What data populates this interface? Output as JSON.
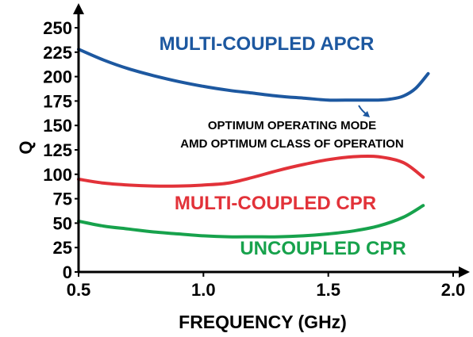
{
  "chart_data": {
    "type": "line",
    "xlabel": "FREQUENCY (GHz)",
    "ylabel": "Q",
    "xlim": [
      0.5,
      2.0
    ],
    "ylim": [
      0,
      250
    ],
    "xticks": [
      0.5,
      1.0,
      1.5,
      2.0
    ],
    "xtick_labels": [
      "0.5",
      "1.0",
      "1.5",
      "2.0"
    ],
    "yticks": [
      0,
      25,
      50,
      75,
      100,
      125,
      150,
      175,
      200,
      225,
      250
    ],
    "grid": false,
    "annotation": {
      "lines": [
        "OPTIMUM OPERATING MODE",
        "AMD OPTIMUM CLASS OF OPERATION"
      ],
      "points_to": {
        "x": 1.55,
        "y": 175
      }
    },
    "series": [
      {
        "name": "MULTI-COUPLED APCR",
        "color": "#1d58a0",
        "x": [
          0.5,
          0.6,
          0.7,
          0.8,
          0.9,
          1.0,
          1.1,
          1.2,
          1.3,
          1.4,
          1.5,
          1.6,
          1.7,
          1.75,
          1.8,
          1.85,
          1.9
        ],
        "y": [
          228,
          217,
          208,
          201,
          195,
          190,
          186,
          183,
          180,
          178,
          176,
          176,
          176,
          177,
          180,
          188,
          203
        ]
      },
      {
        "name": "MULTI-COUPLED CPR",
        "color": "#e23239",
        "x": [
          0.5,
          0.6,
          0.7,
          0.8,
          0.9,
          1.0,
          1.1,
          1.2,
          1.3,
          1.4,
          1.5,
          1.6,
          1.7,
          1.8,
          1.88
        ],
        "y": [
          95,
          91,
          89,
          88,
          88,
          89,
          91,
          97,
          104,
          110,
          115,
          118,
          118,
          112,
          97
        ]
      },
      {
        "name": "UNCOUPLED CPR",
        "color": "#17a24c",
        "x": [
          0.5,
          0.6,
          0.7,
          0.8,
          0.9,
          1.0,
          1.1,
          1.2,
          1.3,
          1.4,
          1.5,
          1.6,
          1.7,
          1.8,
          1.88
        ],
        "y": [
          52,
          47,
          44,
          41,
          39,
          37,
          36,
          36,
          36,
          37,
          39,
          42,
          47,
          56,
          68
        ]
      }
    ]
  }
}
